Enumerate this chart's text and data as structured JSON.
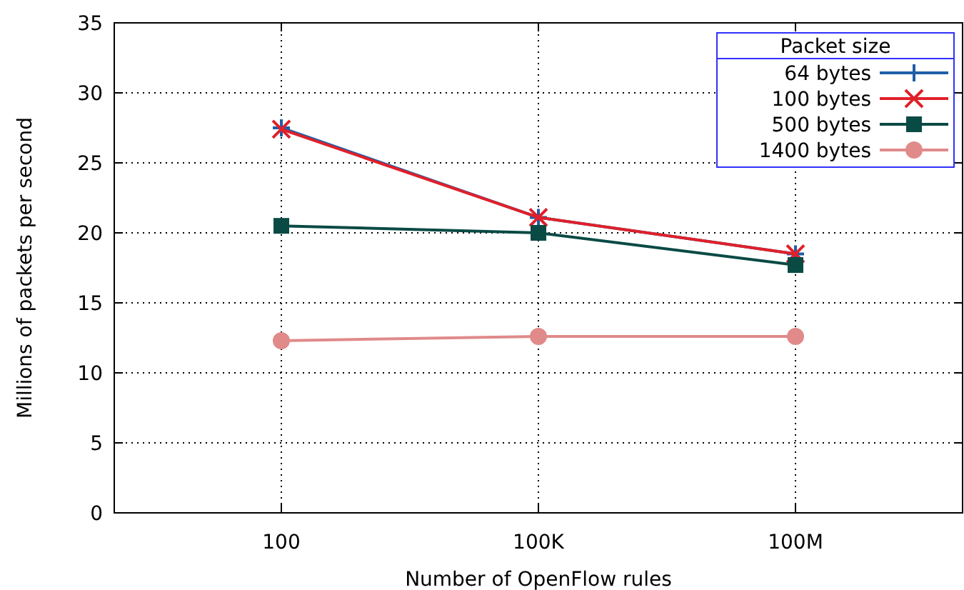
{
  "chart_data": {
    "type": "line",
    "xlabel": "Number of OpenFlow rules",
    "ylabel": "Millions of packets per second",
    "legend_title": "Packet size",
    "legend": "top right",
    "grid": true,
    "categories": [
      "100",
      "100K",
      "100M"
    ],
    "ylim": [
      0,
      35
    ],
    "yticks": [
      0,
      5,
      10,
      15,
      20,
      25,
      30,
      35
    ],
    "series": [
      {
        "name": "64 bytes",
        "color": "#1f5fa8",
        "marker": "plus",
        "values": [
          27.5,
          21.1,
          18.5
        ]
      },
      {
        "name": "100 bytes",
        "color": "#e0202a",
        "marker": "cross",
        "values": [
          27.4,
          21.1,
          18.5
        ]
      },
      {
        "name": "500 bytes",
        "color": "#0a4a45",
        "marker": "square",
        "values": [
          20.5,
          20.0,
          17.7
        ]
      },
      {
        "name": "1400 bytes",
        "color": "#e08a8a",
        "marker": "circle",
        "values": [
          12.3,
          12.6,
          12.6
        ]
      }
    ]
  }
}
